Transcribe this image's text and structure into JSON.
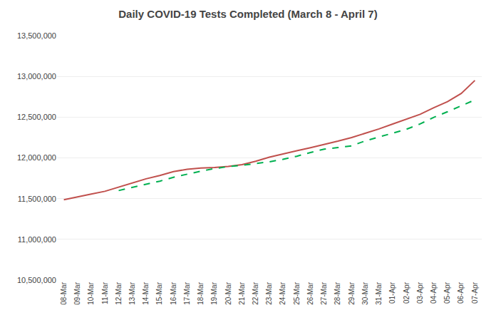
{
  "chart_data": {
    "type": "line",
    "title": "Daily COVID-19 Tests Completed (March 8 - April 7)",
    "categories": [
      "08-Mar",
      "09-Mar",
      "10-Mar",
      "11-Mar",
      "12-Mar",
      "13-Mar",
      "14-Mar",
      "15-Mar",
      "16-Mar",
      "17-Mar",
      "18-Mar",
      "19-Mar",
      "20-Mar",
      "21-Mar",
      "22-Mar",
      "23-Mar",
      "24-Mar",
      "25-Mar",
      "26-Mar",
      "27-Mar",
      "28-Mar",
      "29-Mar",
      "30-Mar",
      "31-Mar",
      "01-Apr",
      "02-Apr",
      "03-Apr",
      "04-Apr",
      "05-Apr",
      "06-Apr",
      "07-Apr"
    ],
    "series": [
      {
        "color": "#c0504d",
        "line_style": "solid",
        "values": [
          11487000,
          11519000,
          11556000,
          11590000,
          11640000,
          11693000,
          11743000,
          11784000,
          11832000,
          11860000,
          11876000,
          11882000,
          11895000,
          11917000,
          11958000,
          12008000,
          12050000,
          12088000,
          12125000,
          12163000,
          12205000,
          12250000,
          12300000,
          12355000,
          12415000,
          12475000,
          12535000,
          12615000,
          12690000,
          12790000,
          12950000
        ]
      },
      {
        "color": "#00b050",
        "line_style": "dashed",
        "values": [
          null,
          null,
          null,
          null,
          11599000,
          11637000,
          11673000,
          11714000,
          11762000,
          11801000,
          11837000,
          11869000,
          11893000,
          11908000,
          11927000,
          11952000,
          11982000,
          12020000,
          12066000,
          12107000,
          12126000,
          12147000,
          12209000,
          12255000,
          12306000,
          12351000,
          12416000,
          12498000,
          12566000,
          12641000,
          12712000
        ]
      }
    ],
    "ylim": [
      10500000,
      13500000
    ],
    "yticks": [
      {
        "value": 10500000,
        "label": "10,500,000"
      },
      {
        "value": 11000000,
        "label": "11,000,000"
      },
      {
        "value": 11500000,
        "label": "11,500,000"
      },
      {
        "value": 12000000,
        "label": "12,000,000"
      },
      {
        "value": 12500000,
        "label": "12,500,000"
      },
      {
        "value": 13000000,
        "label": "13,000,000"
      },
      {
        "value": 13500000,
        "label": "13,500,000"
      }
    ],
    "grid": true
  }
}
